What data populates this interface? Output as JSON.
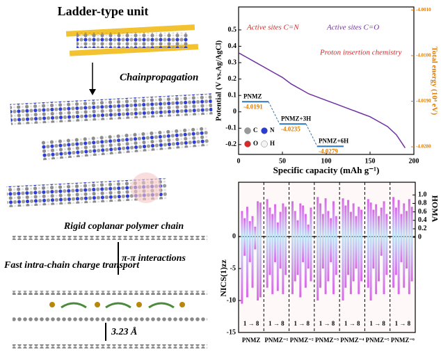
{
  "illustration": {
    "title": "Ladder-type unit",
    "step": "Chainpropagation",
    "chain_label": "Rigid coplanar polymer chain",
    "interaction_label": "π-π interactions",
    "transport_label": "Fast intra-chain charge transport",
    "distance_label": "3.23 Å"
  },
  "chart_data": [
    {
      "type": "line",
      "xlabel": "Specific capacity (mAh g⁻¹)",
      "ylabel": "Potential (V vs.Ag/AgCl)",
      "y2label": "Total energy (10⁴ eV)",
      "annotations": [
        "Active sites C=N",
        "Active sites C=O",
        "Proton insertion chemistry"
      ],
      "xlim": [
        0,
        200
      ],
      "xticks": [
        0,
        50,
        100,
        150,
        200
      ],
      "ylim": [
        -0.26,
        0.64
      ],
      "yticks": [
        -0.2,
        -0.1,
        0,
        0.1,
        0.2,
        0.3,
        0.4,
        0.5
      ],
      "y2lim": [
        -4.0295,
        -4.0004
      ],
      "y2ticks": [
        {
          "value": -4.001,
          "label": "-4.0010"
        },
        {
          "value": -4.01,
          "label": "-4.0100"
        },
        {
          "value": -4.019,
          "label": "-4.0190"
        },
        {
          "value": -4.028,
          "label": "-4.0280"
        }
      ],
      "series": [
        {
          "color": "#7030a0",
          "x": [
            0,
            10,
            20,
            30,
            40,
            50,
            60,
            70,
            80,
            90,
            100,
            110,
            120,
            130,
            140,
            150,
            160,
            170,
            180,
            190
          ],
          "values": [
            0.36,
            0.33,
            0.3,
            0.27,
            0.24,
            0.21,
            0.17,
            0.14,
            0.11,
            0.09,
            0.07,
            0.05,
            0.03,
            0.01,
            -0.01,
            -0.03,
            -0.06,
            -0.09,
            -0.14,
            -0.22
          ]
        }
      ],
      "energy_levels": [
        {
          "name": "PNMZ",
          "value": -4.0191,
          "axis": "y2"
        },
        {
          "name": "PNMZ+3H",
          "value": -4.0235,
          "axis": "y2"
        },
        {
          "name": "PNMZ+6H",
          "value": -4.0279,
          "axis": "y2"
        }
      ],
      "level_color": "#2e75b6",
      "value_color": "#e07b00",
      "legend": [
        "C",
        "N",
        "O",
        "H"
      ]
    },
    {
      "type": "bar",
      "ylabel": "NICS(1)zz",
      "y2label": "HOMA",
      "ylim": [
        -15,
        8.5
      ],
      "yticks": [
        -15,
        -10,
        -5,
        0
      ],
      "y2lim": [
        -2.25,
        1.3
      ],
      "y2ticks": [
        0,
        0.2,
        0.4,
        0.6,
        0.8,
        {
          "value": 1,
          "label": "1.0"
        }
      ],
      "range_label": "1 → 8",
      "color": "#d966e6",
      "gradient_to": "#bfe6f7",
      "groups": [
        {
          "label": "PNMZ",
          "homa": [
            0.62,
            0.45,
            0.72,
            0.38,
            0.5,
            0.25,
            0.85,
            0.82
          ],
          "nics": [
            -10.5,
            -3,
            -9.5,
            -4,
            -8,
            -2,
            -10,
            -9.5
          ]
        },
        {
          "label": "PNMZ⁻¹",
          "homa": [
            0.9,
            0.7,
            0.55,
            0.78,
            0.35,
            0.6,
            0.8,
            0.72
          ],
          "nics": [
            -8,
            -6,
            -9,
            -4,
            -8.5,
            -5,
            -9,
            -6
          ]
        },
        {
          "label": "PNMZ⁻²",
          "homa": [
            0.85,
            0.62,
            0.4,
            0.8,
            0.75,
            0.55,
            0.3,
            0.7
          ],
          "nics": [
            -9,
            -7,
            -6,
            -9.5,
            -4,
            -8,
            -5,
            -7
          ]
        },
        {
          "label": "PNMZ⁻³",
          "homa": [
            0.95,
            0.8,
            0.55,
            0.92,
            0.62,
            0.45,
            0.85,
            0.5
          ],
          "nics": [
            -10,
            -8,
            -5,
            -9,
            -7,
            -4,
            -9,
            -6
          ]
        },
        {
          "label": "PNMZ⁻⁴",
          "homa": [
            0.92,
            0.75,
            0.88,
            0.6,
            0.8,
            0.5,
            0.72,
            0.65
          ],
          "nics": [
            -10,
            -8,
            -6,
            -9,
            -7,
            -5,
            -9,
            -7
          ]
        },
        {
          "label": "PNMZ⁻⁵",
          "homa": [
            0.9,
            0.82,
            0.65,
            0.78,
            0.5,
            0.7,
            0.85,
            0.55
          ],
          "nics": [
            -8,
            -10,
            -5,
            -9,
            -7,
            -3,
            -9,
            -6
          ]
        },
        {
          "label": "PNMZ⁻⁶",
          "homa": [
            0.95,
            0.7,
            0.88,
            0.55,
            0.8,
            0.62,
            0.9,
            0.72
          ],
          "nics": [
            -8,
            -6,
            -9,
            -4,
            -8,
            -5,
            -9,
            -7
          ]
        }
      ]
    }
  ]
}
